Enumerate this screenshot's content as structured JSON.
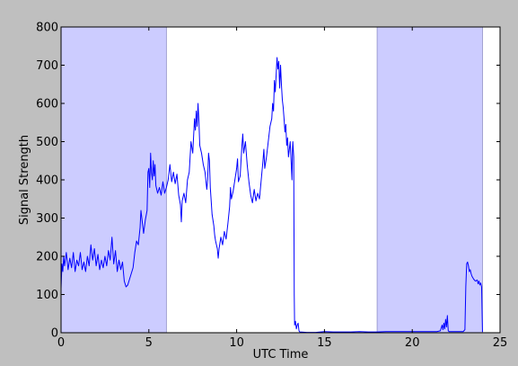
{
  "chart_data": {
    "type": "line",
    "xlabel": "UTC Time",
    "ylabel": "Signal Strength",
    "xlim": [
      0,
      25
    ],
    "ylim": [
      0,
      800
    ],
    "xticks": [
      0,
      5,
      10,
      15,
      20,
      25
    ],
    "yticks": [
      0,
      100,
      200,
      300,
      400,
      500,
      600,
      700,
      800
    ],
    "grid": false,
    "colors": {
      "figure_background": "#bfbfbf",
      "axes_background": "#ffffff",
      "line": "#0000ff",
      "night_band": "#ccccff"
    },
    "shaded_spans": [
      {
        "x": [
          0,
          6
        ]
      },
      {
        "x": [
          18,
          24
        ]
      }
    ],
    "series": [
      {
        "points": [
          [
            0.0,
            115
          ],
          [
            0.05,
            180
          ],
          [
            0.1,
            160
          ],
          [
            0.15,
            200
          ],
          [
            0.2,
            175
          ],
          [
            0.3,
            210
          ],
          [
            0.4,
            165
          ],
          [
            0.5,
            195
          ],
          [
            0.6,
            170
          ],
          [
            0.7,
            210
          ],
          [
            0.8,
            160
          ],
          [
            0.9,
            190
          ],
          [
            1.0,
            175
          ],
          [
            1.1,
            210
          ],
          [
            1.2,
            165
          ],
          [
            1.3,
            185
          ],
          [
            1.4,
            160
          ],
          [
            1.5,
            200
          ],
          [
            1.6,
            175
          ],
          [
            1.7,
            230
          ],
          [
            1.8,
            190
          ],
          [
            1.9,
            220
          ],
          [
            2.0,
            175
          ],
          [
            2.1,
            205
          ],
          [
            2.2,
            165
          ],
          [
            2.3,
            190
          ],
          [
            2.4,
            170
          ],
          [
            2.5,
            200
          ],
          [
            2.6,
            175
          ],
          [
            2.7,
            215
          ],
          [
            2.8,
            190
          ],
          [
            2.9,
            250
          ],
          [
            3.0,
            180
          ],
          [
            3.1,
            215
          ],
          [
            3.2,
            160
          ],
          [
            3.3,
            190
          ],
          [
            3.4,
            165
          ],
          [
            3.5,
            185
          ],
          [
            3.6,
            135
          ],
          [
            3.7,
            120
          ],
          [
            3.8,
            125
          ],
          [
            3.9,
            140
          ],
          [
            4.0,
            155
          ],
          [
            4.1,
            170
          ],
          [
            4.2,
            210
          ],
          [
            4.3,
            240
          ],
          [
            4.4,
            230
          ],
          [
            4.5,
            275
          ],
          [
            4.55,
            320
          ],
          [
            4.6,
            300
          ],
          [
            4.7,
            260
          ],
          [
            4.8,
            295
          ],
          [
            4.9,
            320
          ],
          [
            4.95,
            420
          ],
          [
            5.0,
            430
          ],
          [
            5.05,
            380
          ],
          [
            5.1,
            470
          ],
          [
            5.15,
            420
          ],
          [
            5.2,
            400
          ],
          [
            5.25,
            450
          ],
          [
            5.3,
            410
          ],
          [
            5.35,
            440
          ],
          [
            5.4,
            385
          ],
          [
            5.5,
            365
          ],
          [
            5.6,
            380
          ],
          [
            5.7,
            360
          ],
          [
            5.8,
            395
          ],
          [
            5.9,
            365
          ],
          [
            6.0,
            380
          ],
          [
            6.1,
            400
          ],
          [
            6.2,
            440
          ],
          [
            6.3,
            395
          ],
          [
            6.4,
            420
          ],
          [
            6.5,
            390
          ],
          [
            6.6,
            415
          ],
          [
            6.7,
            360
          ],
          [
            6.8,
            335
          ],
          [
            6.85,
            290
          ],
          [
            6.9,
            345
          ],
          [
            7.0,
            365
          ],
          [
            7.1,
            340
          ],
          [
            7.2,
            400
          ],
          [
            7.3,
            420
          ],
          [
            7.4,
            500
          ],
          [
            7.5,
            470
          ],
          [
            7.6,
            560
          ],
          [
            7.65,
            530
          ],
          [
            7.7,
            580
          ],
          [
            7.75,
            540
          ],
          [
            7.8,
            600
          ],
          [
            7.85,
            555
          ],
          [
            7.9,
            490
          ],
          [
            8.0,
            470
          ],
          [
            8.1,
            440
          ],
          [
            8.2,
            420
          ],
          [
            8.3,
            375
          ],
          [
            8.35,
            400
          ],
          [
            8.4,
            470
          ],
          [
            8.45,
            450
          ],
          [
            8.5,
            380
          ],
          [
            8.6,
            310
          ],
          [
            8.7,
            280
          ],
          [
            8.75,
            255
          ],
          [
            8.8,
            240
          ],
          [
            8.9,
            220
          ],
          [
            8.95,
            195
          ],
          [
            9.0,
            220
          ],
          [
            9.1,
            250
          ],
          [
            9.2,
            230
          ],
          [
            9.3,
            265
          ],
          [
            9.4,
            245
          ],
          [
            9.5,
            285
          ],
          [
            9.6,
            330
          ],
          [
            9.65,
            380
          ],
          [
            9.7,
            350
          ],
          [
            9.8,
            370
          ],
          [
            9.9,
            400
          ],
          [
            10.0,
            430
          ],
          [
            10.05,
            455
          ],
          [
            10.1,
            395
          ],
          [
            10.2,
            410
          ],
          [
            10.3,
            490
          ],
          [
            10.35,
            520
          ],
          [
            10.4,
            470
          ],
          [
            10.5,
            500
          ],
          [
            10.6,
            440
          ],
          [
            10.7,
            395
          ],
          [
            10.8,
            360
          ],
          [
            10.9,
            340
          ],
          [
            11.0,
            375
          ],
          [
            11.1,
            345
          ],
          [
            11.2,
            365
          ],
          [
            11.3,
            350
          ],
          [
            11.4,
            400
          ],
          [
            11.5,
            450
          ],
          [
            11.55,
            480
          ],
          [
            11.6,
            430
          ],
          [
            11.7,
            460
          ],
          [
            11.8,
            500
          ],
          [
            11.9,
            540
          ],
          [
            12.0,
            560
          ],
          [
            12.05,
            600
          ],
          [
            12.1,
            580
          ],
          [
            12.15,
            660
          ],
          [
            12.2,
            630
          ],
          [
            12.3,
            720
          ],
          [
            12.35,
            690
          ],
          [
            12.4,
            710
          ],
          [
            12.45,
            640
          ],
          [
            12.5,
            700
          ],
          [
            12.55,
            650
          ],
          [
            12.6,
            610
          ],
          [
            12.65,
            590
          ],
          [
            12.7,
            560
          ],
          [
            12.75,
            525
          ],
          [
            12.8,
            545
          ],
          [
            12.85,
            490
          ],
          [
            12.9,
            510
          ],
          [
            12.95,
            460
          ],
          [
            13.0,
            480
          ],
          [
            13.05,
            500
          ],
          [
            13.1,
            450
          ],
          [
            13.15,
            400
          ],
          [
            13.18,
            480
          ],
          [
            13.2,
            500
          ],
          [
            13.25,
            460
          ],
          [
            13.28,
            100
          ],
          [
            13.3,
            20
          ],
          [
            13.35,
            30
          ],
          [
            13.4,
            10
          ],
          [
            13.45,
            20
          ],
          [
            13.5,
            25
          ],
          [
            13.55,
            5
          ],
          [
            13.6,
            2
          ],
          [
            14.0,
            1
          ],
          [
            14.5,
            1
          ],
          [
            15.0,
            3
          ],
          [
            15.5,
            2
          ],
          [
            16.0,
            2
          ],
          [
            16.5,
            2
          ],
          [
            17.0,
            3
          ],
          [
            17.5,
            2
          ],
          [
            18.0,
            2
          ],
          [
            18.5,
            3
          ],
          [
            19.0,
            3
          ],
          [
            19.5,
            3
          ],
          [
            20.0,
            3
          ],
          [
            20.5,
            3
          ],
          [
            21.0,
            3
          ],
          [
            21.4,
            3
          ],
          [
            21.6,
            5
          ],
          [
            21.7,
            20
          ],
          [
            21.75,
            8
          ],
          [
            21.8,
            25
          ],
          [
            21.85,
            10
          ],
          [
            21.9,
            35
          ],
          [
            21.95,
            15
          ],
          [
            22.0,
            45
          ],
          [
            22.05,
            5
          ],
          [
            22.1,
            3
          ],
          [
            22.5,
            3
          ],
          [
            22.9,
            3
          ],
          [
            23.0,
            8
          ],
          [
            23.05,
            120
          ],
          [
            23.1,
            180
          ],
          [
            23.15,
            185
          ],
          [
            23.2,
            175
          ],
          [
            23.25,
            160
          ],
          [
            23.3,
            165
          ],
          [
            23.35,
            155
          ],
          [
            23.4,
            148
          ],
          [
            23.5,
            140
          ],
          [
            23.6,
            135
          ],
          [
            23.7,
            138
          ],
          [
            23.75,
            128
          ],
          [
            23.8,
            135
          ],
          [
            23.85,
            125
          ],
          [
            23.9,
            130
          ],
          [
            23.95,
            120
          ],
          [
            24.0,
            2
          ]
        ]
      }
    ]
  }
}
